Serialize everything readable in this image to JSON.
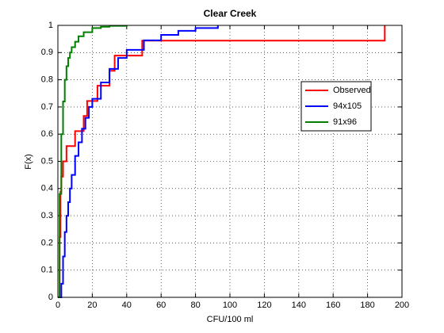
{
  "chart_data": {
    "type": "step",
    "title": "Clear Creek",
    "x_label": "CFU/100 ml",
    "y_label": "F(x)",
    "xlim": [
      0,
      200
    ],
    "xticks": [
      0,
      20,
      40,
      60,
      80,
      100,
      120,
      140,
      160,
      180,
      200
    ],
    "ylim": [
      0,
      1
    ],
    "yticks": [
      0,
      0.1,
      0.2,
      0.3,
      0.4,
      0.5,
      0.6,
      0.7,
      0.8,
      0.9,
      1
    ],
    "grid": true,
    "legend": "right",
    "series": [
      {
        "name": "Observed",
        "color": "#ff0000",
        "x": [
          0,
          1,
          1.5,
          2,
          3,
          5,
          10,
          15,
          17,
          23,
          30,
          33,
          49,
          190
        ],
        "values": [
          0,
          0.222,
          0.389,
          0.444,
          0.5,
          0.556,
          0.611,
          0.667,
          0.722,
          0.778,
          0.833,
          0.889,
          0.944,
          1
        ]
      },
      {
        "name": "94x105",
        "color": "#0000ff",
        "x": [
          0,
          2,
          3,
          4,
          5,
          6,
          7,
          8,
          10,
          12,
          14,
          16,
          18,
          20,
          25,
          30,
          35,
          40,
          50,
          60,
          70,
          80,
          93
        ],
        "values": [
          0,
          0.05,
          0.15,
          0.24,
          0.3,
          0.35,
          0.4,
          0.45,
          0.52,
          0.57,
          0.62,
          0.66,
          0.7,
          0.73,
          0.79,
          0.84,
          0.88,
          0.91,
          0.945,
          0.965,
          0.98,
          0.99,
          1
        ]
      },
      {
        "name": "91x96",
        "color": "#008000",
        "x": [
          0,
          1,
          2,
          3,
          4,
          5,
          6,
          7,
          8,
          10,
          12,
          15,
          20,
          25,
          30,
          40
        ],
        "values": [
          0,
          0.38,
          0.6,
          0.72,
          0.8,
          0.85,
          0.88,
          0.9,
          0.92,
          0.94,
          0.96,
          0.975,
          0.99,
          0.995,
          0.998,
          1
        ]
      }
    ]
  }
}
